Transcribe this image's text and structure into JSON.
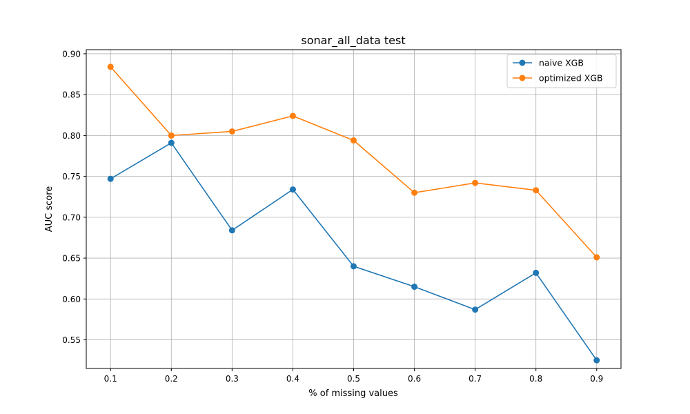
{
  "chart_data": {
    "type": "line",
    "title": "sonar_all_data test",
    "xlabel": "% of missing values",
    "ylabel": "AUC score",
    "x": [
      0.1,
      0.2,
      0.3,
      0.4,
      0.5,
      0.6,
      0.7,
      0.8,
      0.9
    ],
    "x_tick_labels": [
      "0.1",
      "0.2",
      "0.3",
      "0.4",
      "0.5",
      "0.6",
      "0.7",
      "0.8",
      "0.9"
    ],
    "y_ticks": [
      0.55,
      0.6,
      0.65,
      0.7,
      0.75,
      0.8,
      0.85,
      0.9
    ],
    "y_tick_labels": [
      "0.55",
      "0.60",
      "0.65",
      "0.70",
      "0.75",
      "0.80",
      "0.85",
      "0.90"
    ],
    "xlim": [
      0.06,
      0.94
    ],
    "ylim": [
      0.515,
      0.905
    ],
    "grid": true,
    "legend_position": "top-right",
    "series": [
      {
        "name": "naive XGB",
        "color": "#1f77b4",
        "values": [
          0.747,
          0.791,
          0.684,
          0.734,
          0.64,
          0.615,
          0.587,
          0.632,
          0.525
        ]
      },
      {
        "name": "optimized XGB",
        "color": "#ff7f0e",
        "values": [
          0.884,
          0.8,
          0.805,
          0.824,
          0.794,
          0.73,
          0.742,
          0.733,
          0.651
        ]
      }
    ]
  }
}
